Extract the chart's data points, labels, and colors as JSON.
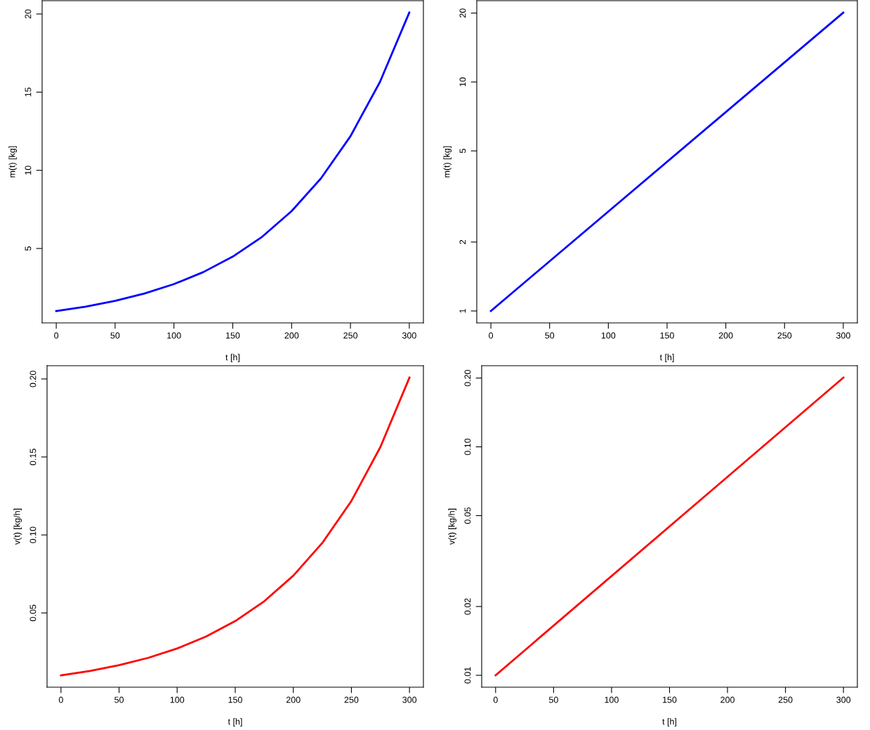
{
  "chart_data": [
    {
      "type": "line",
      "xlabel": "t [h]",
      "ylabel": "m(t) [kg]",
      "x": [
        0,
        25,
        50,
        75,
        100,
        125,
        150,
        175,
        200,
        225,
        250,
        275,
        300
      ],
      "series": [
        {
          "color": "#0000ff",
          "values": [
            1.0,
            1.28,
            1.65,
            2.12,
            2.72,
            3.49,
            4.48,
            5.75,
            7.39,
            9.49,
            12.18,
            15.64,
            20.09
          ]
        }
      ],
      "xlim": [
        -12,
        312
      ],
      "xticks": [
        0,
        50,
        100,
        150,
        200,
        250,
        300
      ],
      "ylim": [
        0.24,
        20.85
      ],
      "yticks": [
        5,
        10,
        15,
        20
      ],
      "grid": false,
      "legend": false
    },
    {
      "type": "line",
      "xlabel": "t [h]",
      "ylabel": "m(t) [kg]",
      "log": "y",
      "x": [
        0,
        300
      ],
      "series": [
        {
          "color": "#0000ff",
          "values": [
            1.0,
            20.09
          ]
        }
      ],
      "xlim": [
        -12,
        312
      ],
      "xticks": [
        0,
        50,
        100,
        150,
        200,
        250,
        300
      ],
      "ylim": [
        0.887,
        22.65
      ],
      "yticks": [
        1,
        2,
        5,
        10,
        20
      ],
      "grid": false,
      "legend": false
    },
    {
      "type": "line",
      "xlabel": "t [h]",
      "ylabel": "v(t) [kg/h]",
      "x": [
        0,
        25,
        50,
        75,
        100,
        125,
        150,
        175,
        200,
        225,
        250,
        275,
        300
      ],
      "series": [
        {
          "color": "#ff0000",
          "values": [
            0.01,
            0.0128,
            0.0165,
            0.0212,
            0.0272,
            0.0349,
            0.0448,
            0.0575,
            0.0739,
            0.0949,
            0.1218,
            0.1564,
            0.2009
          ]
        }
      ],
      "xlim": [
        -12,
        312
      ],
      "xticks": [
        0,
        50,
        100,
        150,
        200,
        250,
        300
      ],
      "ylim": [
        0.0024,
        0.2085
      ],
      "yticks": [
        {
          "value": 0.05,
          "label": "0.05"
        },
        {
          "value": 0.1,
          "label": "0.10"
        },
        {
          "value": 0.15,
          "label": "0.15"
        },
        {
          "value": 0.2,
          "label": "0.20"
        }
      ],
      "grid": false,
      "legend": false
    },
    {
      "type": "line",
      "xlabel": "t [h]",
      "ylabel": "v(t) [kg/h]",
      "log": "y",
      "x": [
        0,
        300
      ],
      "series": [
        {
          "color": "#ff0000",
          "values": [
            0.01,
            0.2009
          ]
        }
      ],
      "xlim": [
        -12,
        312
      ],
      "xticks": [
        0,
        50,
        100,
        150,
        200,
        250,
        300
      ],
      "ylim": [
        0.00887,
        0.2265
      ],
      "yticks": [
        {
          "value": 0.01,
          "label": "0.01"
        },
        {
          "value": 0.02,
          "label": "0.02"
        },
        {
          "value": 0.05,
          "label": "0.05"
        },
        {
          "value": 0.1,
          "label": "0.10"
        },
        {
          "value": 0.2,
          "label": "0.20"
        }
      ],
      "grid": false,
      "legend": false
    }
  ]
}
